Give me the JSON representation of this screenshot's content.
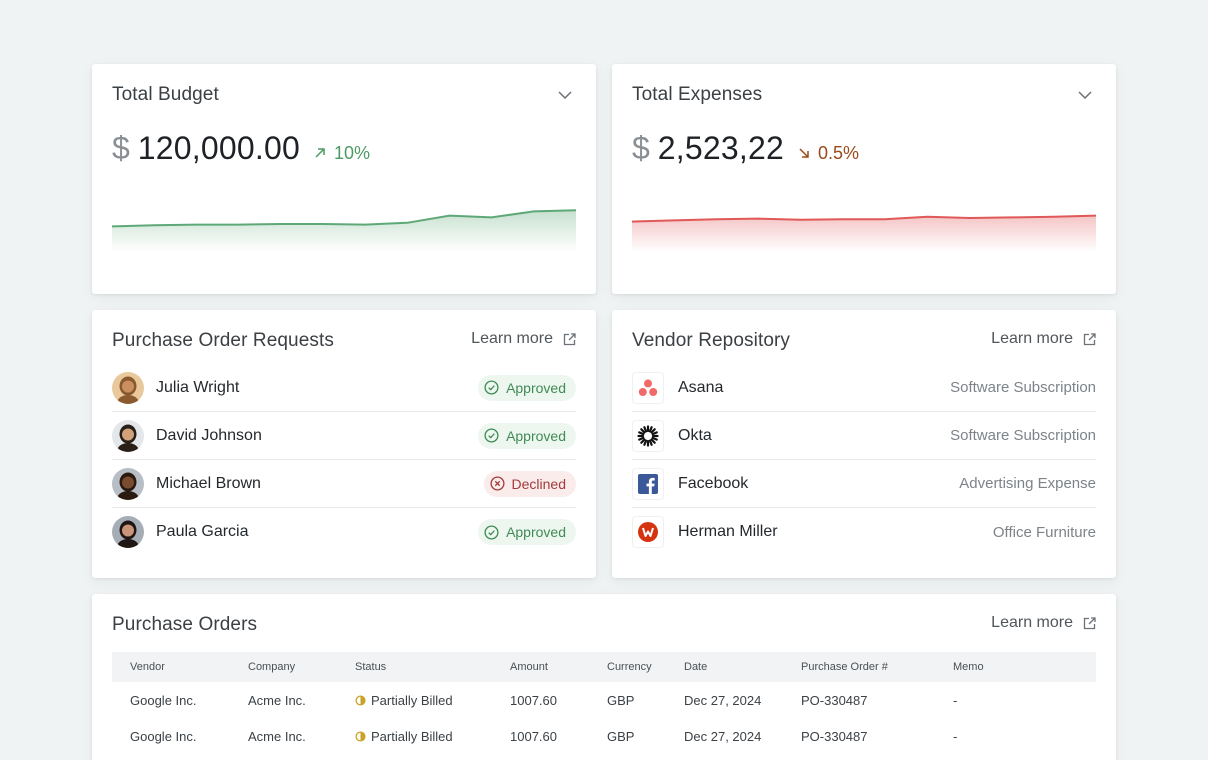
{
  "budget": {
    "title": "Total Budget",
    "currency_symbol": "$",
    "amount": "120,000.00",
    "delta": "10%",
    "trend": "up",
    "accent": "#5ea877",
    "chart_data": {
      "type": "area",
      "x": [
        1,
        2,
        3,
        4,
        5,
        6,
        7,
        8,
        9,
        10,
        11,
        12
      ],
      "values": [
        26,
        28,
        29,
        29,
        30,
        30,
        29,
        32,
        44,
        41,
        51,
        53
      ],
      "ylim": [
        0,
        100
      ]
    }
  },
  "expenses": {
    "title": "Total Expenses",
    "currency_symbol": "$",
    "amount": "2,523,22",
    "delta": "0.5%",
    "trend": "down",
    "accent": "#e05858",
    "chart_data": {
      "type": "area",
      "x": [
        1,
        2,
        3,
        4,
        5,
        6,
        7,
        8,
        9,
        10,
        11,
        12
      ],
      "values": [
        34,
        36,
        38,
        39,
        37,
        38,
        38,
        42,
        40,
        41,
        42,
        44
      ],
      "ylim": [
        0,
        100
      ]
    }
  },
  "po_requests": {
    "title": "Purchase Order Requests",
    "learn_more": "Learn more",
    "items": [
      {
        "name": "Julia Wright",
        "status": "Approved",
        "state": "ok",
        "skin": "#c98f5e",
        "hair": "#8a5a2e",
        "bg": "#e9c89b"
      },
      {
        "name": "David Johnson",
        "status": "Approved",
        "state": "ok",
        "skin": "#d1a27a",
        "hair": "#2a1f18",
        "bg": "#e4e7ea"
      },
      {
        "name": "Michael Brown",
        "status": "Declined",
        "state": "no",
        "skin": "#7a4b2c",
        "hair": "#2b1a10",
        "bg": "#b7bec5"
      },
      {
        "name": "Paula Garcia",
        "status": "Approved",
        "state": "ok",
        "skin": "#c9957a",
        "hair": "#1f1713",
        "bg": "#a5adb6"
      }
    ]
  },
  "vendors": {
    "title": "Vendor Repository",
    "learn_more": "Learn more",
    "items": [
      {
        "name": "Asana",
        "category": "Software Subscription",
        "logo": "asana-icon"
      },
      {
        "name": "Okta",
        "category": "Software Subscription",
        "logo": "okta-icon"
      },
      {
        "name": "Facebook",
        "category": "Advertising Expense",
        "logo": "facebook-icon"
      },
      {
        "name": "Herman Miller",
        "category": "Office Furniture",
        "logo": "herman-miller-icon"
      }
    ]
  },
  "purchase_orders": {
    "title": "Purchase Orders",
    "learn_more": "Learn more",
    "columns": [
      "Vendor",
      "Company",
      "Status",
      "Amount",
      "Currency",
      "Date",
      "Purchase Order #",
      "Memo"
    ],
    "rows": [
      [
        "Google Inc.",
        "Acme Inc.",
        "Partially Billed",
        "1007.60",
        "GBP",
        "Dec 27, 2024",
        "PO-330487",
        "-"
      ],
      [
        "Google Inc.",
        "Acme Inc.",
        "Partially Billed",
        "1007.60",
        "GBP",
        "Dec 27, 2024",
        "PO-330487",
        "-"
      ]
    ]
  }
}
